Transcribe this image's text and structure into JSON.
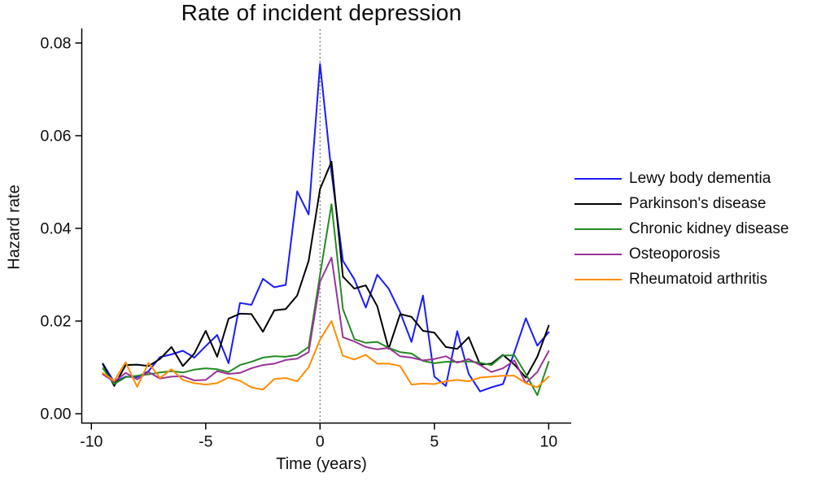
{
  "chart_data": {
    "type": "line",
    "title": "Rate of incident depression",
    "xlabel": "Time (years)",
    "ylabel": "Hazard rate",
    "xlim": [
      -10.45,
      11.0
    ],
    "ylim": [
      0,
      0.0832
    ],
    "grid": false,
    "legend_position": "right",
    "vline_x": 0,
    "x_ticks": [
      {
        "v": -10,
        "label": "-10"
      },
      {
        "v": -5,
        "label": "-5"
      },
      {
        "v": 0,
        "label": "0"
      },
      {
        "v": 5,
        "label": "5"
      },
      {
        "v": 10,
        "label": "10"
      }
    ],
    "y_ticks": [
      {
        "v": 0.0,
        "label": "0.00"
      },
      {
        "v": 0.02,
        "label": "0.02"
      },
      {
        "v": 0.04,
        "label": "0.04"
      },
      {
        "v": 0.06,
        "label": "0.06"
      },
      {
        "v": 0.08,
        "label": "0.08"
      }
    ],
    "x": [
      -9.5,
      -9,
      -8.5,
      -8,
      -7.5,
      -7,
      -6.5,
      -6,
      -5.5,
      -5,
      -4.5,
      -4,
      -3.5,
      -3,
      -2.5,
      -2,
      -1.5,
      -1,
      -0.5,
      0,
      0.5,
      1,
      1.5,
      2,
      2.5,
      3,
      3.5,
      4,
      4.5,
      5,
      5.5,
      6,
      6.5,
      7,
      7.5,
      8,
      8.5,
      9,
      9.5,
      10
    ],
    "series": [
      {
        "name": "Lewy body dementia",
        "color": "#1a1aff",
        "values": [
          0.0108,
          0.0068,
          0.008,
          0.0079,
          0.0092,
          0.0122,
          0.0128,
          0.0136,
          0.0121,
          0.0146,
          0.017,
          0.0109,
          0.0239,
          0.0235,
          0.0291,
          0.0273,
          0.0278,
          0.048,
          0.043,
          0.0755,
          0.052,
          0.033,
          0.029,
          0.0229,
          0.03,
          0.027,
          0.0219,
          0.0155,
          0.0255,
          0.008,
          0.006,
          0.0178,
          0.0086,
          0.0048,
          0.0057,
          0.0064,
          0.0133,
          0.0206,
          0.0147,
          0.0176
        ]
      },
      {
        "name": "Parkinson's disease",
        "color": "#000000",
        "values": [
          0.0107,
          0.006,
          0.0105,
          0.0106,
          0.0103,
          0.0118,
          0.0144,
          0.0103,
          0.013,
          0.0179,
          0.0123,
          0.0205,
          0.0216,
          0.0215,
          0.0177,
          0.0223,
          0.0226,
          0.0255,
          0.033,
          0.0485,
          0.0544,
          0.0296,
          0.027,
          0.0277,
          0.0232,
          0.014,
          0.0215,
          0.0209,
          0.0179,
          0.0175,
          0.0144,
          0.014,
          0.0165,
          0.0106,
          0.0108,
          0.0127,
          0.0106,
          0.0078,
          0.0123,
          0.019
        ]
      },
      {
        "name": "Chronic kidney disease",
        "color": "#228b22",
        "values": [
          0.0098,
          0.0064,
          0.0079,
          0.0082,
          0.0085,
          0.0089,
          0.0092,
          0.0089,
          0.0095,
          0.0098,
          0.0096,
          0.009,
          0.0105,
          0.0112,
          0.0121,
          0.0124,
          0.0123,
          0.0127,
          0.0144,
          0.03,
          0.0452,
          0.0226,
          0.0161,
          0.0153,
          0.0155,
          0.0142,
          0.0133,
          0.013,
          0.0114,
          0.0109,
          0.0112,
          0.0112,
          0.0113,
          0.011,
          0.0105,
          0.0126,
          0.0126,
          0.0086,
          0.004,
          0.0112
        ]
      },
      {
        "name": "Osteoporosis",
        "color": "#993399",
        "values": [
          0.0085,
          0.0069,
          0.0088,
          0.0074,
          0.009,
          0.0076,
          0.008,
          0.0081,
          0.0072,
          0.0073,
          0.0092,
          0.0086,
          0.0088,
          0.0098,
          0.0105,
          0.0108,
          0.0116,
          0.0119,
          0.0133,
          0.0285,
          0.0337,
          0.0165,
          0.0156,
          0.0144,
          0.0139,
          0.0142,
          0.0124,
          0.0121,
          0.0115,
          0.0118,
          0.0124,
          0.011,
          0.0118,
          0.0105,
          0.009,
          0.0098,
          0.0115,
          0.0066,
          0.009,
          0.0135
        ]
      },
      {
        "name": "Rheumatoid arthritis",
        "color": "#ff8c00",
        "values": [
          0.0088,
          0.0071,
          0.0111,
          0.0058,
          0.011,
          0.0077,
          0.0096,
          0.0073,
          0.0066,
          0.0063,
          0.0066,
          0.0078,
          0.0071,
          0.0057,
          0.0052,
          0.0075,
          0.0077,
          0.007,
          0.01,
          0.016,
          0.02,
          0.0125,
          0.0117,
          0.0127,
          0.0108,
          0.0108,
          0.0103,
          0.0063,
          0.0065,
          0.0064,
          0.007,
          0.0073,
          0.007,
          0.0078,
          0.008,
          0.0082,
          0.0082,
          0.0066,
          0.0057,
          0.008
        ]
      }
    ]
  }
}
